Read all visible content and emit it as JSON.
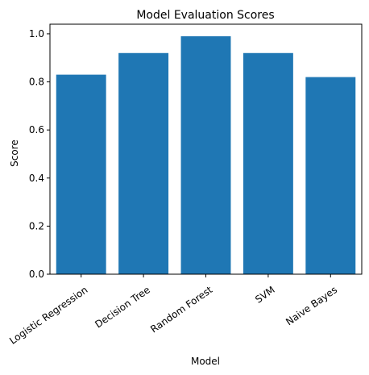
{
  "chart_data": {
    "type": "bar",
    "title": "Model Evaluation Scores",
    "xlabel": "Model",
    "ylabel": "Score",
    "categories": [
      "Logistic Regression",
      "Decision Tree",
      "Random Forest",
      "SVM",
      "Naive Bayes"
    ],
    "values": [
      0.83,
      0.92,
      0.99,
      0.92,
      0.82
    ],
    "ylim": [
      0,
      1.04
    ],
    "yticks": [
      0.0,
      0.2,
      0.4,
      0.6,
      0.8,
      1.0
    ],
    "ytick_labels": [
      "0.0",
      "0.2",
      "0.4",
      "0.6",
      "0.8",
      "1.0"
    ],
    "bar_color": "#1f77b4",
    "grid": false,
    "legend": "none"
  }
}
